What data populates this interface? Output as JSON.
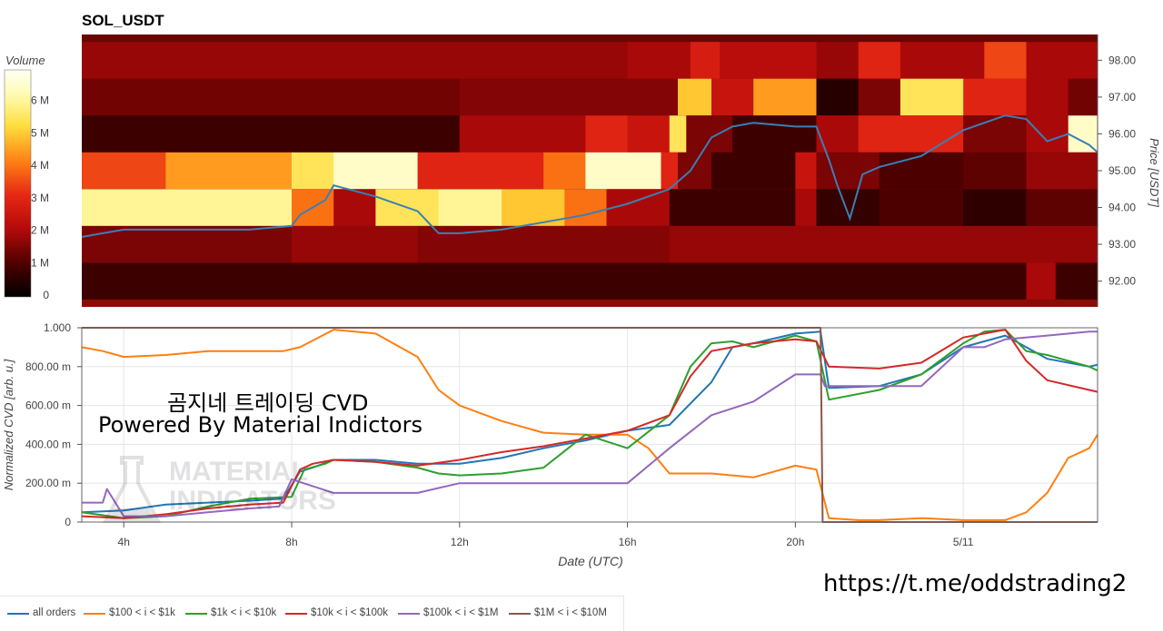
{
  "heatmap": {
    "title": "SOL_USDT",
    "colorbar_label": "Volume",
    "colorbar_ticks": [
      "0",
      "1 M",
      "2 M",
      "3 M",
      "4 M",
      "5 M",
      "6 M"
    ],
    "colorbar_max": 7,
    "price_label": "Price [USDT]",
    "price_ticks": [
      "92.00",
      "93.00",
      "94.00",
      "95.00",
      "96.00",
      "97.00",
      "98.00"
    ],
    "price_range": [
      91.3,
      98.7
    ]
  },
  "cvd": {
    "y_label": "Normalized CVD [arb. u.]",
    "y_ticks": [
      "0",
      "200.00 m",
      "400.00 m",
      "600.00 m",
      "800.00 m",
      "1.000"
    ],
    "x_label": "Date (UTC)",
    "x_ticks": [
      "4h",
      "8h",
      "12h",
      "16h",
      "20h",
      "5/11"
    ],
    "overlay_title": "곰지네 트레이딩 CVD",
    "overlay_subtitle": "Powered By Material Indictors",
    "watermark": "MATERIAL\nINDICATORS"
  },
  "footer": {
    "url": "https://t.me/oddstrading2"
  },
  "legend": [
    {
      "label": "all orders",
      "color": "#1f77b4"
    },
    {
      "label": "$100 < i < $1k",
      "color": "#ff7f0e"
    },
    {
      "label": "$1k < i < $10k",
      "color": "#2ca02c"
    },
    {
      "label": "$10k < i < $100k",
      "color": "#d62728"
    },
    {
      "label": "$100k < i < $1M",
      "color": "#9467bd"
    },
    {
      "label": "$1M < i < $10M",
      "color": "#8c564b"
    }
  ],
  "chart_data": [
    {
      "type": "heatmap",
      "title": "SOL_USDT",
      "ylabel": "Price [USDT]",
      "colorbar_label": "Volume",
      "x_range_hours": [
        3.0,
        27.2
      ],
      "y_range": [
        91.3,
        98.7
      ],
      "price_bands": [
        [
          91.5,
          92.5
        ],
        [
          92.5,
          93.5
        ],
        [
          93.5,
          94.5
        ],
        [
          94.5,
          95.5
        ],
        [
          95.5,
          96.5
        ],
        [
          96.5,
          97.5
        ],
        [
          97.5,
          98.5
        ]
      ],
      "volume_segments_millions": [
        [
          [
            3.0,
            25.5,
            0.8
          ],
          [
            25.5,
            26.2,
            2.0
          ],
          [
            26.2,
            27.2,
            0.8
          ]
        ],
        [
          [
            3.0,
            8.0,
            1.5
          ],
          [
            8.0,
            11.0,
            1.8
          ],
          [
            11.0,
            17.0,
            1.6
          ],
          [
            17.0,
            27.2,
            1.8
          ]
        ],
        [
          [
            3.0,
            8.0,
            6.0
          ],
          [
            8.0,
            9.0,
            4.0
          ],
          [
            9.0,
            10.0,
            2.0
          ],
          [
            10.0,
            11.5,
            5.5
          ],
          [
            11.5,
            13.0,
            6.0
          ],
          [
            13.0,
            14.5,
            5.0
          ],
          [
            14.5,
            15.5,
            4.0
          ],
          [
            15.5,
            17.0,
            2.0
          ],
          [
            17.0,
            20.0,
            0.8
          ],
          [
            20.0,
            20.5,
            2.0
          ],
          [
            20.5,
            22.0,
            0.7
          ],
          [
            22.0,
            24.0,
            1.0
          ],
          [
            24.0,
            25.5,
            0.6
          ],
          [
            25.5,
            27.2,
            1.2
          ]
        ],
        [
          [
            3.0,
            5.0,
            3.5
          ],
          [
            5.0,
            8.0,
            4.5
          ],
          [
            8.0,
            9.0,
            5.5
          ],
          [
            9.0,
            11.0,
            6.5
          ],
          [
            11.0,
            14.0,
            3.0
          ],
          [
            14.0,
            15.0,
            4.0
          ],
          [
            15.0,
            16.8,
            6.5
          ],
          [
            16.8,
            17.2,
            3.0
          ],
          [
            17.2,
            18.0,
            1.5
          ],
          [
            18.0,
            20.0,
            0.8
          ],
          [
            20.0,
            20.5,
            2.5
          ],
          [
            20.5,
            22.0,
            1.5
          ],
          [
            22.0,
            24.0,
            1.0
          ],
          [
            24.0,
            25.5,
            1.2
          ],
          [
            25.5,
            27.2,
            1.8
          ]
        ],
        [
          [
            3.0,
            12.0,
            0.8
          ],
          [
            12.0,
            15.0,
            2.0
          ],
          [
            15.0,
            16.0,
            3.0
          ],
          [
            16.0,
            17.0,
            2.5
          ],
          [
            17.0,
            17.4,
            5.5
          ],
          [
            17.4,
            18.5,
            1.5
          ],
          [
            18.5,
            20.5,
            0.8
          ],
          [
            20.5,
            21.5,
            2.0
          ],
          [
            21.5,
            24.0,
            3.0
          ],
          [
            24.0,
            25.5,
            1.5
          ],
          [
            25.5,
            26.5,
            2.0
          ],
          [
            26.5,
            27.2,
            6.5
          ]
        ],
        [
          [
            3.0,
            12.0,
            1.4
          ],
          [
            12.0,
            16.0,
            1.6
          ],
          [
            16.0,
            17.2,
            1.6
          ],
          [
            17.2,
            18.0,
            5.0
          ],
          [
            18.0,
            19.0,
            2.5
          ],
          [
            19.0,
            20.5,
            4.5
          ],
          [
            20.5,
            21.5,
            0.5
          ],
          [
            21.5,
            22.5,
            1.5
          ],
          [
            22.5,
            24.0,
            5.5
          ],
          [
            24.0,
            25.5,
            3.0
          ],
          [
            25.5,
            26.5,
            2.0
          ],
          [
            26.5,
            27.2,
            1.4
          ]
        ],
        [
          [
            3.0,
            16.0,
            1.8
          ],
          [
            16.0,
            17.5,
            2.0
          ],
          [
            17.5,
            18.2,
            2.8
          ],
          [
            18.2,
            20.5,
            2.2
          ],
          [
            20.5,
            21.5,
            1.8
          ],
          [
            21.5,
            22.5,
            3.0
          ],
          [
            22.5,
            24.5,
            2.0
          ],
          [
            24.5,
            25.5,
            3.5
          ],
          [
            25.5,
            27.2,
            2.0
          ]
        ]
      ],
      "price_series": {
        "x_hours": [
          3.0,
          3.5,
          4.0,
          5.0,
          6.0,
          7.0,
          8.0,
          8.2,
          8.8,
          9.0,
          10.0,
          11.0,
          11.5,
          12.0,
          13.0,
          14.0,
          15.0,
          16.0,
          17.0,
          17.5,
          18.0,
          18.5,
          19.0,
          20.0,
          20.5,
          20.8,
          21.0,
          21.3,
          21.6,
          22.0,
          23.0,
          24.0,
          25.0,
          25.5,
          26.0,
          26.5,
          27.0,
          27.2
        ],
        "values": [
          93.2,
          93.3,
          93.4,
          93.4,
          93.4,
          93.4,
          93.5,
          93.8,
          94.2,
          94.6,
          94.3,
          93.9,
          93.3,
          93.3,
          93.4,
          93.6,
          93.8,
          94.1,
          94.5,
          95.0,
          95.9,
          96.2,
          96.3,
          96.2,
          96.2,
          95.3,
          94.6,
          93.7,
          94.9,
          95.1,
          95.4,
          96.1,
          96.5,
          96.4,
          95.8,
          96.0,
          95.7,
          95.5
        ]
      }
    },
    {
      "type": "line",
      "title": "",
      "xlabel": "Date (UTC)",
      "ylabel": "Normalized CVD [arb. u.]",
      "xlim_hours": [
        3.0,
        27.2
      ],
      "ylim": [
        0,
        1
      ],
      "series": [
        {
          "name": "all orders",
          "color": "#1f77b4",
          "x": [
            3.0,
            4.0,
            5.0,
            6.0,
            7.0,
            7.8,
            8.2,
            8.5,
            9.0,
            10.0,
            11.0,
            12.0,
            13.0,
            14.0,
            15.0,
            16.0,
            17.0,
            18.0,
            18.5,
            19.0,
            20.0,
            20.6,
            20.8,
            22.0,
            23.0,
            24.0,
            25.0,
            26.0,
            27.0,
            27.2
          ],
          "y": [
            0.05,
            0.06,
            0.09,
            0.1,
            0.11,
            0.12,
            0.26,
            0.28,
            0.32,
            0.32,
            0.3,
            0.3,
            0.33,
            0.38,
            0.42,
            0.47,
            0.5,
            0.72,
            0.9,
            0.92,
            0.97,
            0.98,
            0.69,
            0.7,
            0.76,
            0.9,
            0.96,
            0.84,
            0.8,
            0.81
          ]
        },
        {
          "name": "$100 < i < $1k",
          "color": "#ff7f0e",
          "x": [
            3.0,
            3.5,
            4.0,
            5.0,
            6.0,
            7.0,
            7.8,
            8.2,
            9.0,
            9.5,
            10.0,
            11.0,
            11.5,
            12.0,
            13.0,
            14.0,
            15.0,
            16.0,
            16.5,
            17.0,
            18.0,
            19.0,
            20.0,
            20.5,
            20.8,
            21.5,
            22.0,
            23.0,
            24.0,
            25.0,
            25.5,
            26.0,
            26.5,
            27.0,
            27.2
          ],
          "y": [
            0.9,
            0.88,
            0.85,
            0.86,
            0.88,
            0.88,
            0.88,
            0.9,
            0.99,
            0.98,
            0.97,
            0.85,
            0.68,
            0.6,
            0.52,
            0.46,
            0.45,
            0.45,
            0.38,
            0.25,
            0.25,
            0.23,
            0.29,
            0.27,
            0.02,
            0.01,
            0.01,
            0.02,
            0.01,
            0.01,
            0.05,
            0.15,
            0.33,
            0.38,
            0.45
          ]
        },
        {
          "name": "$1k < i < $10k",
          "color": "#2ca02c",
          "x": [
            3.0,
            4.0,
            5.0,
            6.0,
            7.0,
            8.0,
            8.3,
            8.8,
            9.0,
            10.0,
            11.0,
            11.5,
            12.0,
            13.0,
            14.0,
            15.0,
            16.0,
            17.0,
            17.5,
            18.0,
            18.5,
            19.0,
            20.0,
            20.5,
            20.8,
            22.0,
            23.0,
            24.0,
            24.5,
            25.0,
            25.5,
            26.0,
            27.0,
            27.2
          ],
          "y": [
            0.05,
            0.02,
            0.03,
            0.08,
            0.12,
            0.13,
            0.27,
            0.3,
            0.32,
            0.31,
            0.28,
            0.25,
            0.24,
            0.25,
            0.28,
            0.45,
            0.38,
            0.55,
            0.8,
            0.92,
            0.93,
            0.9,
            0.96,
            0.93,
            0.63,
            0.68,
            0.76,
            0.92,
            0.98,
            0.99,
            0.88,
            0.86,
            0.8,
            0.78
          ]
        },
        {
          "name": "$10k < i < $100k",
          "color": "#d62728",
          "x": [
            3.0,
            4.0,
            5.0,
            6.0,
            7.0,
            7.8,
            8.2,
            8.5,
            9.0,
            10.0,
            11.0,
            12.0,
            13.0,
            14.0,
            15.0,
            16.0,
            17.0,
            17.5,
            18.0,
            18.5,
            19.0,
            20.0,
            20.5,
            20.8,
            22.0,
            23.0,
            24.0,
            25.0,
            25.5,
            26.0,
            27.0,
            27.2
          ],
          "y": [
            0.03,
            0.02,
            0.04,
            0.07,
            0.09,
            0.1,
            0.27,
            0.3,
            0.32,
            0.31,
            0.29,
            0.32,
            0.36,
            0.39,
            0.43,
            0.47,
            0.55,
            0.75,
            0.88,
            0.9,
            0.92,
            0.94,
            0.93,
            0.8,
            0.79,
            0.82,
            0.95,
            0.99,
            0.83,
            0.73,
            0.68,
            0.67
          ]
        },
        {
          "name": "$100k < i < $1M",
          "color": "#9467bd",
          "x": [
            3.0,
            3.5,
            3.6,
            4.0,
            5.0,
            6.0,
            7.0,
            7.7,
            8.0,
            9.0,
            11.0,
            12.0,
            13.0,
            14.0,
            15.0,
            16.0,
            17.0,
            18.0,
            19.0,
            20.0,
            20.6,
            20.7,
            22.0,
            23.0,
            24.0,
            24.5,
            25.0,
            26.0,
            27.0,
            27.2
          ],
          "y": [
            0.1,
            0.1,
            0.17,
            0.03,
            0.03,
            0.05,
            0.07,
            0.08,
            0.22,
            0.15,
            0.15,
            0.2,
            0.2,
            0.2,
            0.2,
            0.2,
            0.38,
            0.55,
            0.62,
            0.76,
            0.76,
            0.7,
            0.7,
            0.7,
            0.9,
            0.9,
            0.94,
            0.96,
            0.98,
            0.98
          ]
        },
        {
          "name": "$1M < i < $10M",
          "color": "#8c564b",
          "x": [
            3.0,
            20.6,
            20.65,
            27.2
          ],
          "y": [
            1.0,
            1.0,
            0.0,
            0.0
          ]
        }
      ]
    }
  ]
}
